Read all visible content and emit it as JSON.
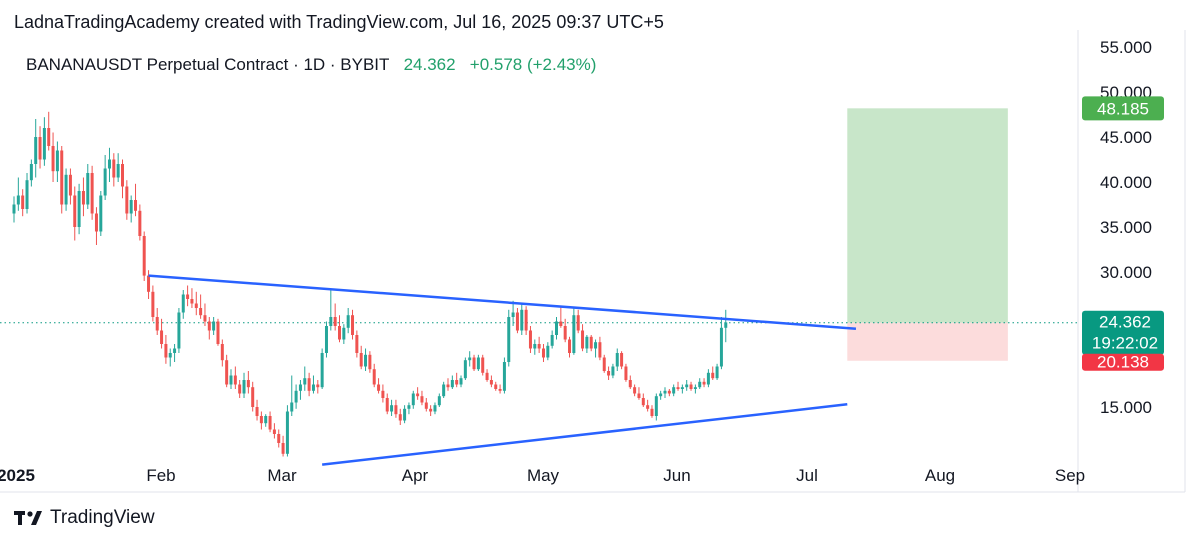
{
  "header": {
    "attribution": "LadnaTradingAcademy created with TradingView.com, Jul 16, 2025 09:37 UTC+5",
    "symbol_line": "BANANAUSDT Perpetual Contract · 1D · BYBIT",
    "price": "24.362",
    "change": "+0.578 (+2.43%)"
  },
  "brand": {
    "name": "TradingView",
    "icon": "tradingview-logo-icon"
  },
  "colors": {
    "up": "#26a69a",
    "down": "#ef5350",
    "trendline": "#2962ff",
    "target_zone": "#c8e6c9",
    "stop_zone": "#fcdcdc",
    "target_badge": "#4caf50",
    "current_badge": "#089981",
    "stop_badge": "#f23645"
  },
  "chart_data": {
    "type": "candlestick",
    "x_ticks": [
      "2025",
      "Feb",
      "Mar",
      "Apr",
      "May",
      "Jun",
      "Jul",
      "Aug",
      "Sep"
    ],
    "y_ticks": [
      "55.000",
      "50.000",
      "45.000",
      "40.000",
      "35.000",
      "30.000",
      "15.000"
    ],
    "ylim": [
      7,
      55.5
    ],
    "price_labels": {
      "target": "48.185",
      "current": "24.362",
      "countdown": "19:22:02",
      "stop": "20.138"
    },
    "levels": {
      "target": 48.185,
      "current": 24.362,
      "stop": 20.138
    },
    "position_zone": {
      "start_day": 192,
      "end_day": 229
    },
    "trendlines": [
      {
        "name": "upper",
        "from": {
          "day": 31,
          "value": 29.6
        },
        "to": {
          "day": 194,
          "value": 23.7
        }
      },
      {
        "name": "lower",
        "from": {
          "day": 71,
          "value": 8.6
        },
        "to": {
          "day": 192,
          "value": 15.3
        }
      }
    ],
    "candles": [
      [
        36.5,
        38.4,
        35.5,
        37.5
      ],
      [
        37.5,
        40.5,
        36.8,
        38.5
      ],
      [
        38.5,
        39.2,
        36.2,
        37.0
      ],
      [
        37.0,
        41.0,
        36.5,
        40.2
      ],
      [
        40.2,
        42.5,
        39.5,
        42.0
      ],
      [
        42.0,
        47.0,
        40.5,
        45.0
      ],
      [
        45.0,
        46.2,
        41.5,
        42.5
      ],
      [
        42.5,
        47.2,
        41.8,
        46.0
      ],
      [
        46.0,
        47.8,
        43.5,
        44.0
      ],
      [
        44.0,
        45.5,
        40.0,
        41.2
      ],
      [
        41.2,
        44.5,
        40.0,
        43.5
      ],
      [
        43.5,
        44.0,
        36.5,
        37.5
      ],
      [
        37.5,
        41.5,
        36.8,
        40.8
      ],
      [
        40.8,
        41.5,
        37.5,
        38.5
      ],
      [
        38.5,
        39.5,
        33.5,
        35.0
      ],
      [
        35.0,
        39.8,
        34.2,
        39.0
      ],
      [
        39.0,
        40.5,
        36.2,
        37.5
      ],
      [
        37.5,
        42.0,
        37.0,
        41.0
      ],
      [
        41.0,
        41.8,
        35.8,
        36.5
      ],
      [
        36.5,
        37.2,
        33.0,
        34.5
      ],
      [
        34.5,
        39.0,
        34.0,
        38.5
      ],
      [
        38.5,
        43.0,
        38.0,
        41.5
      ],
      [
        41.5,
        43.8,
        40.0,
        42.5
      ],
      [
        42.5,
        43.2,
        39.5,
        40.5
      ],
      [
        40.5,
        43.2,
        40.0,
        42.0
      ],
      [
        42.0,
        42.5,
        38.2,
        39.5
      ],
      [
        39.5,
        40.2,
        35.8,
        36.5
      ],
      [
        36.5,
        38.5,
        35.5,
        38.0
      ],
      [
        38.0,
        39.8,
        36.2,
        36.8
      ],
      [
        36.8,
        37.5,
        33.5,
        34.0
      ],
      [
        34.0,
        34.5,
        29.0,
        29.6
      ],
      [
        29.6,
        30.2,
        27.0,
        27.8
      ],
      [
        27.8,
        28.5,
        24.5,
        25.0
      ],
      [
        25.0,
        26.0,
        23.0,
        23.5
      ],
      [
        23.5,
        24.8,
        21.5,
        22.0
      ],
      [
        22.0,
        23.0,
        19.8,
        20.5
      ],
      [
        20.5,
        21.5,
        19.5,
        21.0
      ],
      [
        21.0,
        22.0,
        20.0,
        21.5
      ],
      [
        21.5,
        26.0,
        21.0,
        25.5
      ],
      [
        25.5,
        28.0,
        24.8,
        27.5
      ],
      [
        27.5,
        28.5,
        26.2,
        27.0
      ],
      [
        27.0,
        28.2,
        26.0,
        26.5
      ],
      [
        26.5,
        27.8,
        25.2,
        26.0
      ],
      [
        26.0,
        27.5,
        24.8,
        25.2
      ],
      [
        25.2,
        26.5,
        24.0,
        24.5
      ],
      [
        24.5,
        25.0,
        22.5,
        23.5
      ],
      [
        23.5,
        25.0,
        23.0,
        24.5
      ],
      [
        24.5,
        24.8,
        21.8,
        22.0
      ],
      [
        22.0,
        22.5,
        19.5,
        20.2
      ],
      [
        20.2,
        20.8,
        17.2,
        17.5
      ],
      [
        17.5,
        19.2,
        17.0,
        18.5
      ],
      [
        18.5,
        19.5,
        17.0,
        17.5
      ],
      [
        17.5,
        18.0,
        16.0,
        16.5
      ],
      [
        16.5,
        18.8,
        16.0,
        18.0
      ],
      [
        18.0,
        19.0,
        16.5,
        17.2
      ],
      [
        17.2,
        17.8,
        14.5,
        15.0
      ],
      [
        15.0,
        15.8,
        13.5,
        14.0
      ],
      [
        14.0,
        14.5,
        12.5,
        13.2
      ],
      [
        13.2,
        14.2,
        12.8,
        14.0
      ],
      [
        14.0,
        14.5,
        12.2,
        12.5
      ],
      [
        12.5,
        13.2,
        11.5,
        12.0
      ],
      [
        12.0,
        12.5,
        10.5,
        11.0
      ],
      [
        11.0,
        11.8,
        9.5,
        9.8
      ],
      [
        9.8,
        15.2,
        9.5,
        14.5
      ],
      [
        14.5,
        18.5,
        14.0,
        15.5
      ],
      [
        15.5,
        17.5,
        14.8,
        16.8
      ],
      [
        16.8,
        18.0,
        15.8,
        17.5
      ],
      [
        17.5,
        19.5,
        16.8,
        18.2
      ],
      [
        18.2,
        18.8,
        16.2,
        16.8
      ],
      [
        16.8,
        18.5,
        16.5,
        17.5
      ],
      [
        17.5,
        18.0,
        16.5,
        17.2
      ],
      [
        17.2,
        21.5,
        17.0,
        21.0
      ],
      [
        21.0,
        24.5,
        20.5,
        24.0
      ],
      [
        24.0,
        28.0,
        23.5,
        25.0
      ],
      [
        25.0,
        26.5,
        23.5,
        24.0
      ],
      [
        24.0,
        25.2,
        22.2,
        22.5
      ],
      [
        22.5,
        24.2,
        22.0,
        23.8
      ],
      [
        23.8,
        26.0,
        23.2,
        25.2
      ],
      [
        25.2,
        25.8,
        22.5,
        23.0
      ],
      [
        23.0,
        23.5,
        20.5,
        21.0
      ],
      [
        21.0,
        21.8,
        19.2,
        19.5
      ],
      [
        19.5,
        21.5,
        19.0,
        20.8
      ],
      [
        20.8,
        21.2,
        18.8,
        19.2
      ],
      [
        19.2,
        19.8,
        17.2,
        17.5
      ],
      [
        17.5,
        18.2,
        16.5,
        16.8
      ],
      [
        16.8,
        17.5,
        15.5,
        16.0
      ],
      [
        16.0,
        16.5,
        14.2,
        14.5
      ],
      [
        14.5,
        15.8,
        14.0,
        15.2
      ],
      [
        15.2,
        15.8,
        13.8,
        14.2
      ],
      [
        14.2,
        14.8,
        13.0,
        13.5
      ],
      [
        13.5,
        15.2,
        13.2,
        14.8
      ],
      [
        14.8,
        15.5,
        14.2,
        15.2
      ],
      [
        15.2,
        16.8,
        14.8,
        16.5
      ],
      [
        16.5,
        17.2,
        15.8,
        16.2
      ],
      [
        16.2,
        16.8,
        15.2,
        15.5
      ],
      [
        15.5,
        16.0,
        14.5,
        14.8
      ],
      [
        14.8,
        15.2,
        14.0,
        14.5
      ],
      [
        14.5,
        15.5,
        14.2,
        15.2
      ],
      [
        15.2,
        16.5,
        15.0,
        16.2
      ],
      [
        16.2,
        17.8,
        16.0,
        17.5
      ],
      [
        17.5,
        18.2,
        16.8,
        17.2
      ],
      [
        17.2,
        18.5,
        17.0,
        18.0
      ],
      [
        18.0,
        18.8,
        17.2,
        17.5
      ],
      [
        17.5,
        18.5,
        17.2,
        18.2
      ],
      [
        18.2,
        20.5,
        18.0,
        20.2
      ],
      [
        20.2,
        21.2,
        19.5,
        20.5
      ],
      [
        20.5,
        20.8,
        19.0,
        19.2
      ],
      [
        19.2,
        20.8,
        19.0,
        20.5
      ],
      [
        20.5,
        20.8,
        18.5,
        18.8
      ],
      [
        18.8,
        19.2,
        17.8,
        18.0
      ],
      [
        18.0,
        18.5,
        17.2,
        17.5
      ],
      [
        17.5,
        17.8,
        16.8,
        17.0
      ],
      [
        17.0,
        17.5,
        16.5,
        16.8
      ],
      [
        16.8,
        20.5,
        16.5,
        20.0
      ],
      [
        20.0,
        25.8,
        19.5,
        25.0
      ],
      [
        25.0,
        26.8,
        24.0,
        25.5
      ],
      [
        25.5,
        26.0,
        23.2,
        23.5
      ],
      [
        23.5,
        26.5,
        23.0,
        25.8
      ],
      [
        25.8,
        26.2,
        23.0,
        23.5
      ],
      [
        23.5,
        24.0,
        21.0,
        21.5
      ],
      [
        21.5,
        22.5,
        20.8,
        22.0
      ],
      [
        22.0,
        22.8,
        21.0,
        21.5
      ],
      [
        21.5,
        22.0,
        20.0,
        20.5
      ],
      [
        20.5,
        22.2,
        20.2,
        21.8
      ],
      [
        21.8,
        23.5,
        21.5,
        23.0
      ],
      [
        23.0,
        25.0,
        22.5,
        24.5
      ],
      [
        24.5,
        26.2,
        23.8,
        24.0
      ],
      [
        24.0,
        24.8,
        22.2,
        22.5
      ],
      [
        22.5,
        22.8,
        20.5,
        21.0
      ],
      [
        21.0,
        26.0,
        20.8,
        25.2
      ],
      [
        25.2,
        25.8,
        23.2,
        23.5
      ],
      [
        23.5,
        24.2,
        21.2,
        21.5
      ],
      [
        21.5,
        23.0,
        21.0,
        22.8
      ],
      [
        22.8,
        23.0,
        21.2,
        21.5
      ],
      [
        21.5,
        22.5,
        20.5,
        22.2
      ],
      [
        22.2,
        22.8,
        20.2,
        20.5
      ],
      [
        20.5,
        20.8,
        18.8,
        19.0
      ],
      [
        19.0,
        19.5,
        18.0,
        18.5
      ],
      [
        18.5,
        19.8,
        18.2,
        19.5
      ],
      [
        19.5,
        21.5,
        19.0,
        21.0
      ],
      [
        21.0,
        21.2,
        19.2,
        19.5
      ],
      [
        19.5,
        19.8,
        17.8,
        18.0
      ],
      [
        18.0,
        18.5,
        17.0,
        17.2
      ],
      [
        17.2,
        17.5,
        16.2,
        16.5
      ],
      [
        16.5,
        17.2,
        15.8,
        16.0
      ],
      [
        16.0,
        16.5,
        15.0,
        15.2
      ],
      [
        15.2,
        15.8,
        14.5,
        14.8
      ],
      [
        14.8,
        15.2,
        13.8,
        14.0
      ],
      [
        14.0,
        16.5,
        13.5,
        16.2
      ],
      [
        16.2,
        16.8,
        15.8,
        16.5
      ],
      [
        16.5,
        17.2,
        16.0,
        16.8
      ],
      [
        16.8,
        17.0,
        16.2,
        16.5
      ],
      [
        16.5,
        17.5,
        16.2,
        17.2
      ],
      [
        17.2,
        17.8,
        16.8,
        17.0
      ],
      [
        17.0,
        17.5,
        16.5,
        17.2
      ],
      [
        17.2,
        18.0,
        16.8,
        17.5
      ],
      [
        17.5,
        17.8,
        16.8,
        17.0
      ],
      [
        17.0,
        17.5,
        16.5,
        17.2
      ],
      [
        17.2,
        18.2,
        17.0,
        17.8
      ],
      [
        17.8,
        18.2,
        17.2,
        17.5
      ],
      [
        17.5,
        19.2,
        17.2,
        18.8
      ],
      [
        18.8,
        19.5,
        18.0,
        18.2
      ],
      [
        18.2,
        19.8,
        18.0,
        19.5
      ],
      [
        19.5,
        25.0,
        19.2,
        23.8
      ],
      [
        23.8,
        25.8,
        22.2,
        24.4
      ]
    ]
  }
}
